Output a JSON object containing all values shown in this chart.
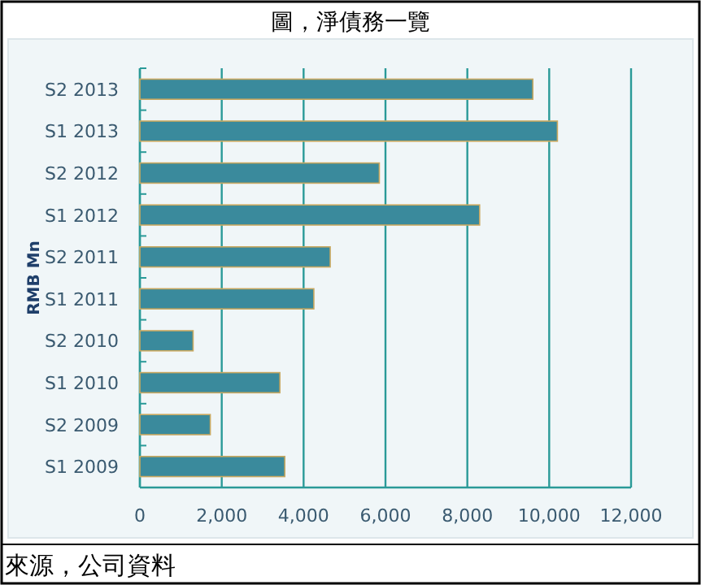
{
  "chart_data": {
    "type": "bar",
    "orientation": "horizontal",
    "title": "圖，淨債務一覽",
    "ylabel": "RMB Mn",
    "categories": [
      "S2 2013",
      "S1 2013",
      "S2 2012",
      "S1 2012",
      "S2 2011",
      "S1 2011",
      "S2 2010",
      "S1 2010",
      "S2 2009",
      "S1 2009"
    ],
    "values": [
      9600,
      10200,
      5850,
      8300,
      4650,
      4250,
      1300,
      3420,
      1720,
      3540
    ],
    "color": "#3a8a9c",
    "xlim": [
      0,
      12000
    ],
    "xticks": [
      {
        "value": 0,
        "label": "0"
      },
      {
        "value": 2000,
        "label": "2,000"
      },
      {
        "value": 4000,
        "label": "4,000"
      },
      {
        "value": 6000,
        "label": "6,000"
      },
      {
        "value": 8000,
        "label": "8,000"
      },
      {
        "value": 10000,
        "label": "10,000"
      },
      {
        "value": 12000,
        "label": "12,000"
      }
    ],
    "grid": "x",
    "annotations": [
      "來源，公司資料"
    ]
  }
}
